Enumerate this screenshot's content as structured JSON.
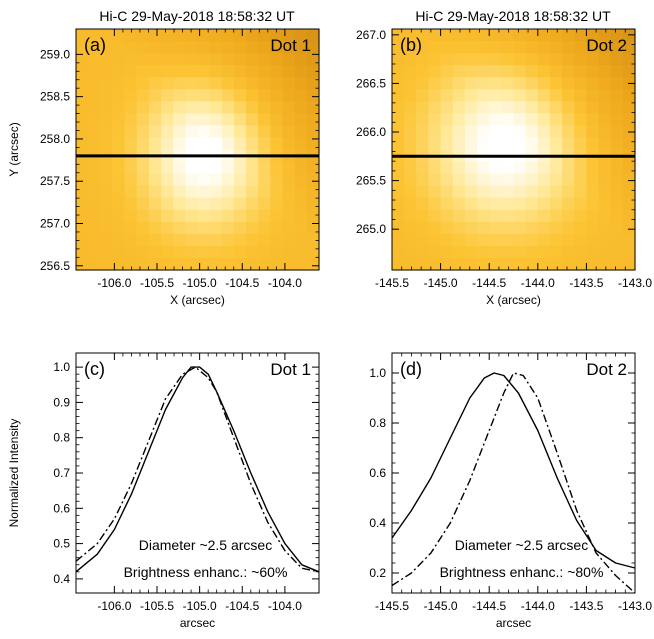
{
  "figure": {
    "panels_top_title": "Hi-C 29-May-2018 18:58:32 UT"
  },
  "chart_data": [
    {
      "panel": "(a)",
      "label": "Dot 1",
      "type": "heatmap",
      "title": "Hi-C 29-May-2018 18:58:32 UT",
      "xlabel": "X (arcsec)",
      "ylabel": "Y (arcsec)",
      "xlim": [
        -106.45,
        -103.6
      ],
      "ylim": [
        256.45,
        259.3
      ],
      "xticks": [
        -106.0,
        -105.5,
        -105.0,
        -104.5,
        -104.0
      ],
      "xtick_labels": [
        "-106.0",
        "-105.5",
        "-105.0",
        "-104.5",
        "-104.0"
      ],
      "yticks": [
        256.5,
        257.0,
        257.5,
        258.0,
        258.5,
        259.0
      ],
      "ytick_labels": [
        "256.5",
        "257.0",
        "257.5",
        "258.0",
        "258.5",
        "259.0"
      ],
      "bright_center": {
        "x": -104.95,
        "y": 257.8
      },
      "bright_width": 0.75,
      "bright_height": 0.9,
      "gradient_corner": "top-right",
      "cut_line_y": 257.8,
      "grid": false
    },
    {
      "panel": "(b)",
      "label": "Dot 2",
      "type": "heatmap",
      "title": "Hi-C 29-May-2018 18:58:32 UT",
      "xlabel": "X (arcsec)",
      "ylabel": "",
      "xlim": [
        -145.5,
        -143.0
      ],
      "ylim": [
        264.58,
        267.06
      ],
      "xticks": [
        -145.5,
        -145.0,
        -144.5,
        -144.0,
        -143.5,
        -143.0
      ],
      "xtick_labels": [
        "-145.5",
        "-145.0",
        "-144.5",
        "-144.0",
        "-143.5",
        "-143.0"
      ],
      "yticks": [
        265.0,
        265.5,
        266.0,
        266.5,
        267.0
      ],
      "ytick_labels": [
        "265.0",
        "265.5",
        "266.0",
        "266.5",
        "267.0"
      ],
      "bright_center": {
        "x": -144.35,
        "y": 265.85
      },
      "bright_width": 0.8,
      "bright_height": 0.85,
      "gradient_corner": "top-right",
      "cut_line_y": 265.75,
      "grid": false
    },
    {
      "panel": "(c)",
      "label": "Dot 1",
      "type": "line",
      "xlabel": "arcsec",
      "ylabel": "Normalized Intensity",
      "xlim": [
        -106.45,
        -103.6
      ],
      "ylim": [
        0.36,
        1.04
      ],
      "xticks": [
        -106.0,
        -105.5,
        -105.0,
        -104.5,
        -104.0
      ],
      "xtick_labels": [
        "-106.0",
        "-105.5",
        "-105.0",
        "-104.5",
        "-104.0"
      ],
      "yticks": [
        0.4,
        0.5,
        0.6,
        0.7,
        0.8,
        0.9,
        1.0
      ],
      "ytick_labels": [
        "0.4",
        "0.5",
        "0.6",
        "0.7",
        "0.8",
        "0.9",
        "1.0"
      ],
      "series": [
        {
          "style": "solid",
          "x": [
            -106.45,
            -106.2,
            -106.0,
            -105.8,
            -105.6,
            -105.4,
            -105.2,
            -105.1,
            -105.0,
            -104.9,
            -104.8,
            -104.6,
            -104.4,
            -104.2,
            -104.0,
            -103.8,
            -103.6
          ],
          "y": [
            0.42,
            0.47,
            0.54,
            0.64,
            0.76,
            0.88,
            0.97,
            1.0,
            1.0,
            0.98,
            0.93,
            0.82,
            0.7,
            0.59,
            0.5,
            0.44,
            0.42
          ]
        },
        {
          "style": "dashdot",
          "x": [
            -106.45,
            -106.2,
            -106.0,
            -105.8,
            -105.6,
            -105.4,
            -105.2,
            -105.05,
            -104.9,
            -104.8,
            -104.6,
            -104.4,
            -104.2,
            -104.0,
            -103.8,
            -103.6
          ],
          "y": [
            0.45,
            0.5,
            0.57,
            0.67,
            0.79,
            0.91,
            0.98,
            1.0,
            0.97,
            0.93,
            0.8,
            0.67,
            0.56,
            0.48,
            0.43,
            0.42
          ]
        }
      ],
      "annotations": [
        "Diameter ~2.5 arcsec",
        "Brightness enhanc.: ~60%"
      ],
      "grid": false
    },
    {
      "panel": "(d)",
      "label": "Dot 2",
      "type": "line",
      "xlabel": "arcsec",
      "ylabel": "",
      "xlim": [
        -145.5,
        -143.0
      ],
      "ylim": [
        0.12,
        1.08
      ],
      "xticks": [
        -145.5,
        -145.0,
        -144.5,
        -144.0,
        -143.5,
        -143.0
      ],
      "xtick_labels": [
        "-145.5",
        "-145.0",
        "-144.5",
        "-144.0",
        "-143.5",
        "-143.0"
      ],
      "yticks": [
        0.2,
        0.4,
        0.6,
        0.8,
        1.0
      ],
      "ytick_labels": [
        "0.2",
        "0.4",
        "0.6",
        "0.8",
        "1.0"
      ],
      "series": [
        {
          "style": "solid",
          "x": [
            -145.5,
            -145.3,
            -145.1,
            -144.9,
            -144.7,
            -144.55,
            -144.45,
            -144.35,
            -144.2,
            -144.0,
            -143.8,
            -143.6,
            -143.4,
            -143.2,
            -143.0
          ],
          "y": [
            0.34,
            0.45,
            0.58,
            0.74,
            0.9,
            0.98,
            1.0,
            0.99,
            0.92,
            0.77,
            0.58,
            0.41,
            0.29,
            0.24,
            0.22
          ]
        },
        {
          "style": "dashdot",
          "x": [
            -145.5,
            -145.3,
            -145.1,
            -144.9,
            -144.7,
            -144.5,
            -144.35,
            -144.25,
            -144.15,
            -144.0,
            -143.8,
            -143.6,
            -143.4,
            -143.2,
            -143.0
          ],
          "y": [
            0.15,
            0.2,
            0.28,
            0.4,
            0.57,
            0.77,
            0.92,
            1.0,
            0.99,
            0.9,
            0.68,
            0.45,
            0.28,
            0.19,
            0.12
          ]
        }
      ],
      "annotations": [
        "Diameter ~2.5 arcsec",
        "Brightness enhanc.: ~80%"
      ],
      "grid": false
    }
  ]
}
